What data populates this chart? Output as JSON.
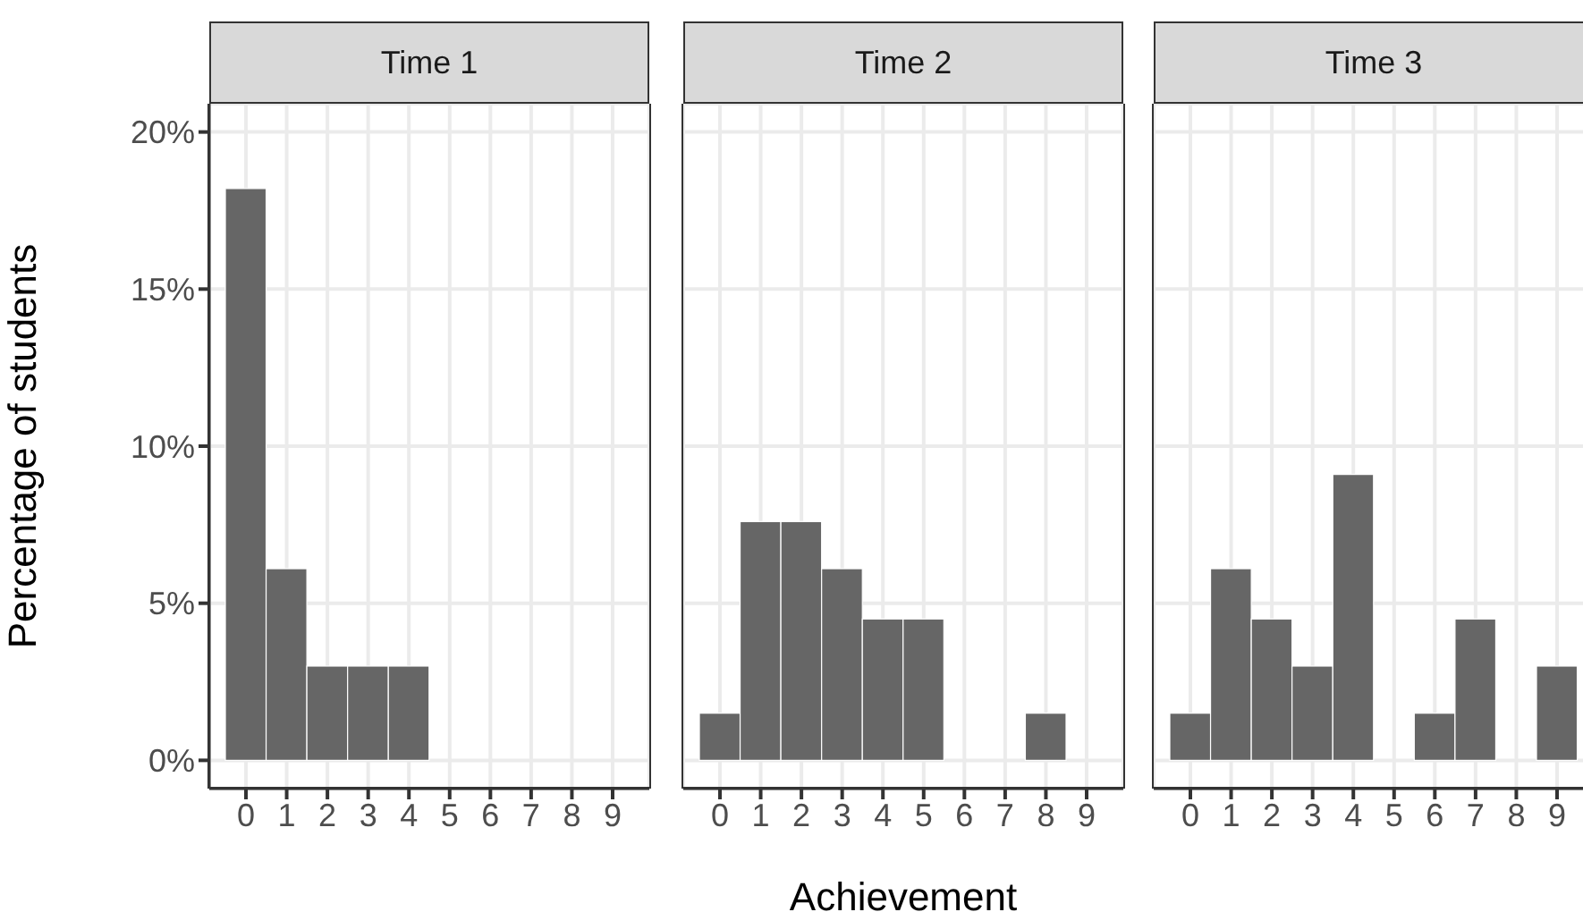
{
  "chart_data": [
    {
      "type": "histogram",
      "title": "Time 1",
      "ylabel": "Percentage of students",
      "bins": [
        -0.5,
        0.5,
        1.5,
        2.5,
        3.5,
        4.5,
        5.5,
        6.5,
        7.5,
        8.5,
        9.5
      ],
      "values": [
        18.2,
        6.1,
        3.0,
        3.0,
        3.0,
        0,
        0,
        0,
        0,
        0
      ],
      "color": "#666666",
      "xlim": [
        -0.9,
        9.9
      ],
      "xticks": [
        0,
        1,
        2,
        3,
        4,
        5,
        6,
        7,
        8,
        9
      ],
      "ylim": [
        -0.9,
        20.9
      ],
      "yticks": [
        {
          "value": 0,
          "label": "0%"
        },
        {
          "value": 5,
          "label": "5%"
        },
        {
          "value": 10,
          "label": "10%"
        },
        {
          "value": 15,
          "label": "15%"
        },
        {
          "value": 20,
          "label": "20%"
        }
      ],
      "grid": true
    },
    {
      "type": "histogram",
      "title": "Time 2",
      "xlabel": "Achievement",
      "bins": [
        -0.5,
        0.5,
        1.5,
        2.5,
        3.5,
        4.5,
        5.5,
        6.5,
        7.5,
        8.5,
        9.5
      ],
      "values": [
        1.5,
        7.6,
        7.6,
        6.1,
        4.5,
        4.5,
        0,
        0,
        1.5,
        0
      ],
      "color": "#666666",
      "xlim": [
        -0.9,
        9.9
      ],
      "xticks": [
        0,
        1,
        2,
        3,
        4,
        5,
        6,
        7,
        8,
        9
      ],
      "ylim": [
        -0.9,
        20.9
      ],
      "yticks": [
        0,
        5,
        10,
        15,
        20
      ],
      "grid": true,
      "tick_labels": "x"
    },
    {
      "type": "histogram",
      "title": "Time 3",
      "bins": [
        -0.5,
        0.5,
        1.5,
        2.5,
        3.5,
        4.5,
        5.5,
        6.5,
        7.5,
        8.5,
        9.5
      ],
      "values": [
        1.5,
        6.1,
        4.5,
        3.0,
        9.1,
        0,
        1.5,
        4.5,
        0,
        3.0
      ],
      "color": "#666666",
      "xlim": [
        -0.9,
        9.9
      ],
      "xticks": [
        0,
        1,
        2,
        3,
        4,
        5,
        6,
        7,
        8,
        9
      ],
      "ylim": [
        -0.9,
        20.9
      ],
      "yticks": [
        0,
        5,
        10,
        15,
        20
      ],
      "grid": true,
      "tick_labels": "x"
    }
  ]
}
